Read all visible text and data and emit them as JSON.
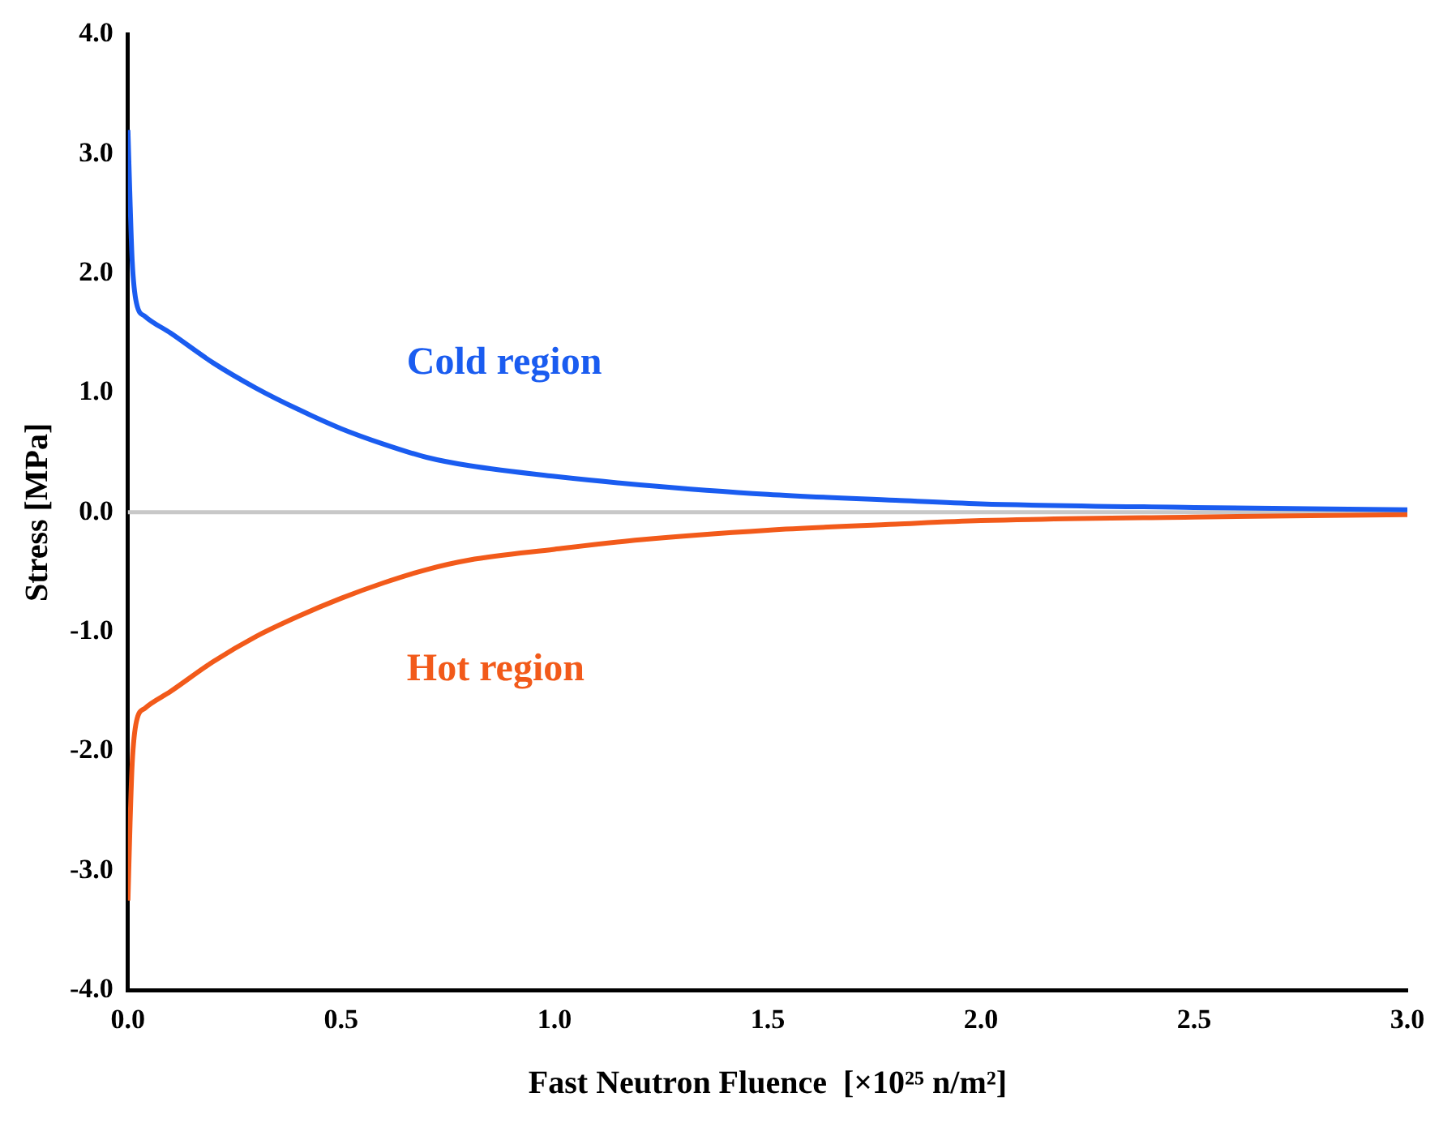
{
  "chart_data": {
    "type": "line",
    "xlabel": "Fast Neutron Fluence  [×10²⁵ n/m²]",
    "ylabel": "Stress [MPa]",
    "xlim": [
      0,
      3
    ],
    "ylim": [
      -4,
      4
    ],
    "xticks": [
      {
        "value": 0,
        "label": "0.0"
      },
      {
        "value": 0.5,
        "label": "0.5"
      },
      {
        "value": 1,
        "label": "1.0"
      },
      {
        "value": 1.5,
        "label": "1.5"
      },
      {
        "value": 2,
        "label": "2.0"
      },
      {
        "value": 2.5,
        "label": "2.5"
      },
      {
        "value": 3,
        "label": "3.0"
      }
    ],
    "yticks": [
      {
        "value": -4,
        "label": "-4.0"
      },
      {
        "value": -3,
        "label": "-3.0"
      },
      {
        "value": -2,
        "label": "-2.0"
      },
      {
        "value": -1,
        "label": "-1.0"
      },
      {
        "value": 0,
        "label": "0.0"
      },
      {
        "value": 1,
        "label": "1.0"
      },
      {
        "value": 2,
        "label": "2.0"
      },
      {
        "value": 3,
        "label": "3.0"
      },
      {
        "value": 4,
        "label": "4.0"
      }
    ],
    "grid": false,
    "legend": false,
    "marker": "none",
    "line_style": "solid",
    "ref_lines": [
      {
        "axis": "y",
        "value": 0,
        "color": "#c8c8c8"
      }
    ],
    "series": [
      {
        "name": "Cold region",
        "color": "#1a5cf0",
        "x": [
          0,
          0.005,
          0.01,
          0.02,
          0.04,
          0.1,
          0.2,
          0.3,
          0.4,
          0.5,
          0.6,
          0.7,
          0.8,
          1.0,
          1.2,
          1.5,
          1.8,
          2.0,
          2.5,
          3.0
        ],
        "values": [
          3.2,
          2.6,
          2.1,
          1.75,
          1.64,
          1.5,
          1.25,
          1.04,
          0.86,
          0.7,
          0.57,
          0.46,
          0.39,
          0.3,
          0.23,
          0.15,
          0.1,
          0.07,
          0.04,
          0.02
        ]
      },
      {
        "name": "Hot region",
        "color": "#f25a1a",
        "x": [
          0,
          0.005,
          0.01,
          0.02,
          0.04,
          0.1,
          0.2,
          0.3,
          0.4,
          0.5,
          0.6,
          0.7,
          0.8,
          1.0,
          1.2,
          1.5,
          1.8,
          2.0,
          2.5,
          3.0
        ],
        "values": [
          -3.25,
          -2.6,
          -2.1,
          -1.75,
          -1.64,
          -1.5,
          -1.25,
          -1.04,
          -0.87,
          -0.72,
          -0.59,
          -0.48,
          -0.4,
          -0.31,
          -0.23,
          -0.15,
          -0.1,
          -0.07,
          -0.04,
          -0.02
        ]
      }
    ]
  }
}
